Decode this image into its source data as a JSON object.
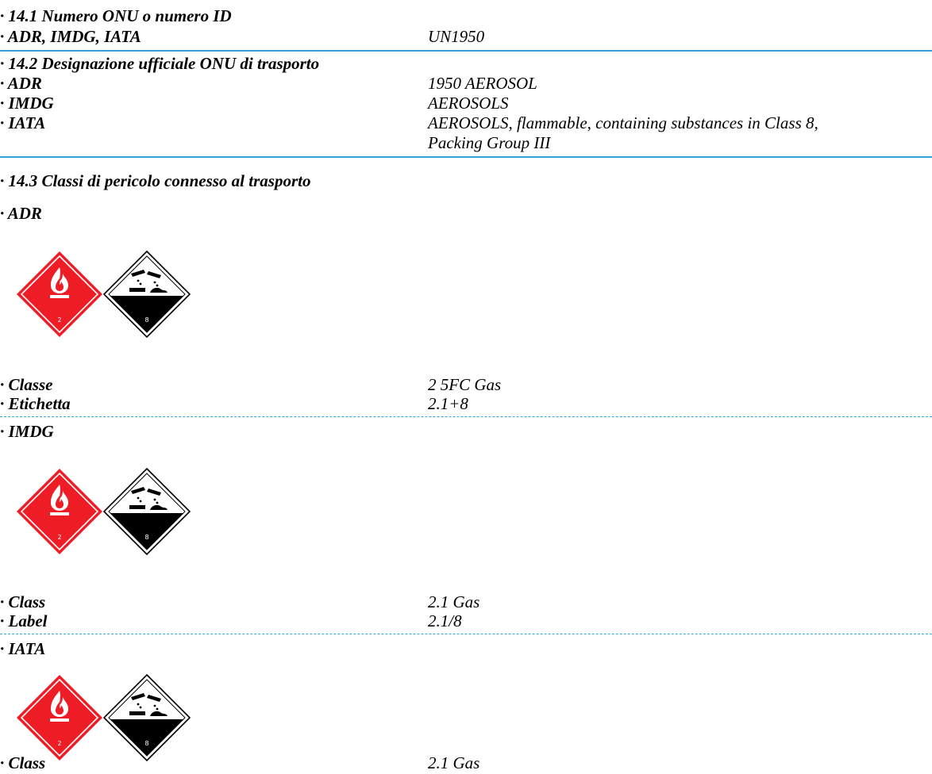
{
  "s141": {
    "heading": "· 14.1 Numero ONU o numero ID",
    "row_label": "· ADR, IMDG, IATA",
    "row_value": "UN1950"
  },
  "s142": {
    "heading": "· 14.2 Designazione ufficiale ONU di trasporto",
    "rows": [
      {
        "label": "· ADR",
        "value": "1950 AEROSOL"
      },
      {
        "label": "· IMDG",
        "value": "AEROSOLS"
      },
      {
        "label": "· IATA",
        "value": "AEROSOLS, flammable, containing substances in Class 8,",
        "value_cont": "Packing Group III"
      }
    ]
  },
  "s143": {
    "heading": "· 14.3 Classi di pericolo connesso al trasporto",
    "adr": {
      "title": "· ADR",
      "rows": [
        {
          "label": "· Classe",
          "value": "2 5FC Gas"
        },
        {
          "label": "· Etichetta",
          "value": "2.1+8"
        }
      ]
    },
    "imdg": {
      "title": "· IMDG",
      "rows": [
        {
          "label": "· Class",
          "value": "2.1 Gas"
        },
        {
          "label": "· Label",
          "value": "2.1/8"
        }
      ]
    },
    "iata": {
      "title": "· IATA",
      "rows": [
        {
          "label": "· Class",
          "value": "2.1 Gas"
        }
      ]
    }
  },
  "pictograms": {
    "flammable_number": "2",
    "corrosive_number": "8",
    "flammable_color": "#ee1c25",
    "corrosive_color": "#000000"
  }
}
